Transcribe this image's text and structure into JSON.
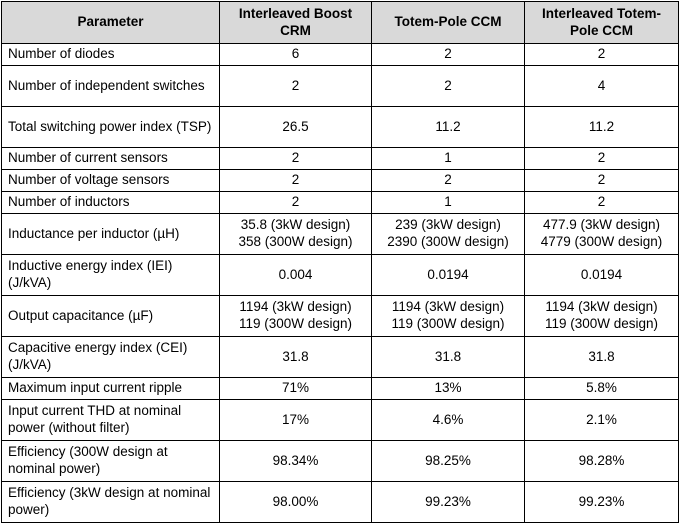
{
  "headers": [
    "Parameter",
    "Interleaved Boost CRM",
    "Totem-Pole CCM",
    "Interleaved Totem-Pole CCM"
  ],
  "rows": [
    {
      "param": "Number of diodes",
      "values": [
        "6",
        "2",
        "2"
      ]
    },
    {
      "param": "Number of independent switches",
      "values": [
        "2",
        "2",
        "4"
      ]
    },
    {
      "param": "Total switching power index (TSP)",
      "values": [
        "26.5",
        "11.2",
        "11.2"
      ]
    },
    {
      "param": "Number of current sensors",
      "values": [
        "2",
        "1",
        "2"
      ]
    },
    {
      "param": "Number of voltage sensors",
      "values": [
        "2",
        "2",
        "2"
      ]
    },
    {
      "param": "Number of inductors",
      "values": [
        "2",
        "1",
        "2"
      ]
    },
    {
      "param": "Inductance per inductor (µH)",
      "values": [
        "35.8 (3kW design)\n358 (300W design)",
        "239 (3kW design)\n2390 (300W design)",
        "477.9 (3kW design)\n4779 (300W design)"
      ]
    },
    {
      "param": "Inductive energy index (IEI) (J/kVA)",
      "values": [
        "0.004",
        "0.0194",
        "0.0194"
      ]
    },
    {
      "param": "Output capacitance (µF)",
      "values": [
        "1194 (3kW design)\n119 (300W design)",
        "1194 (3kW design)\n119 (300W design)",
        "1194 (3kW design)\n119 (300W design)"
      ]
    },
    {
      "param": "Capacitive energy index (CEI) (J/kVA)",
      "values": [
        "31.8",
        "31.8",
        "31.8"
      ]
    },
    {
      "param": "Maximum input current ripple",
      "values": [
        "71%",
        "13%",
        "5.8%"
      ]
    },
    {
      "param": "Input current THD at nominal power (without filter)",
      "values": [
        "17%",
        "4.6%",
        "2.1%"
      ]
    },
    {
      "param": "Efficiency (300W design at nominal power)",
      "values": [
        "98.34%",
        "98.25%",
        "98.28%"
      ]
    },
    {
      "param": "Efficiency (3kW design at nominal power)",
      "values": [
        "98.00%",
        "99.23%",
        "99.23%"
      ]
    }
  ]
}
